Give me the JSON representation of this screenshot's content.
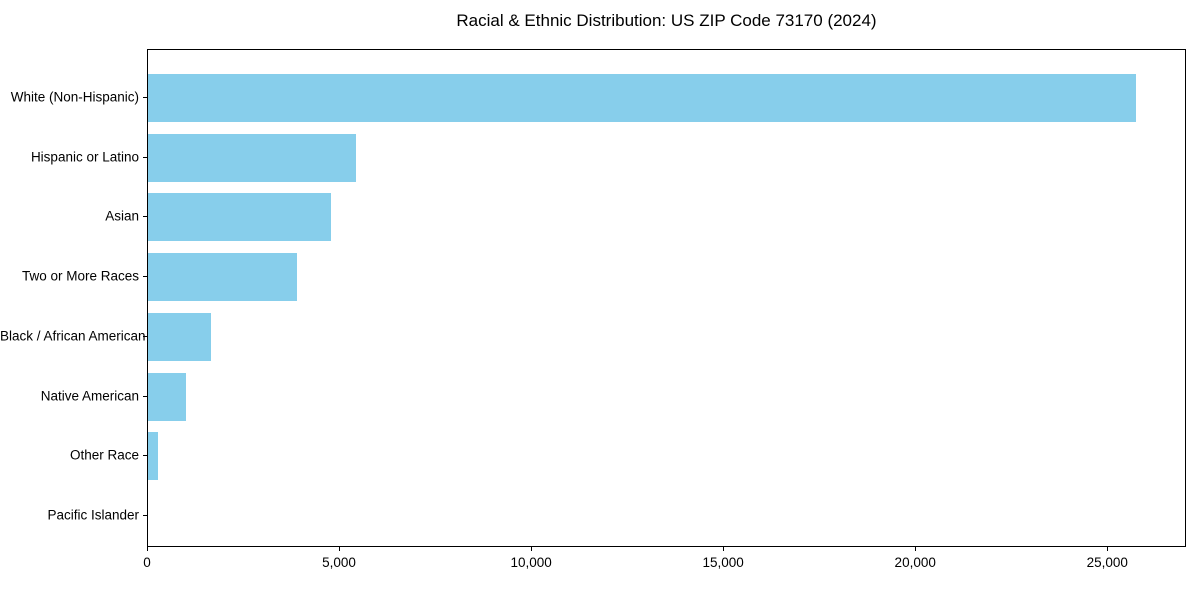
{
  "figure": {
    "title": "Racial & Ethnic Distribution: US ZIP Code 73170 (2024)"
  },
  "chart_data": {
    "type": "bar",
    "orientation": "horizontal",
    "title": "Racial & Ethnic Distribution: US ZIP Code 73170 (2024)",
    "categories": [
      "White (Non-Hispanic)",
      "Hispanic or Latino",
      "Asian",
      "Two or More Races",
      "Black / African American",
      "Native American",
      "Other Race",
      "Pacific Islander"
    ],
    "values": [
      25760,
      5420,
      4770,
      3890,
      1640,
      980,
      250,
      0
    ],
    "xlabel": "",
    "ylabel": "",
    "xlim": [
      0,
      27050
    ],
    "xticks": [
      0,
      5000,
      10000,
      15000,
      20000,
      25000
    ],
    "xtick_labels": [
      "0",
      "5,000",
      "10,000",
      "15,000",
      "20,000",
      "25,000"
    ],
    "bar_color": "#87CEEB",
    "background_color": "#ffffff",
    "axis_color": "#000000",
    "grid": false,
    "legend": false
  }
}
